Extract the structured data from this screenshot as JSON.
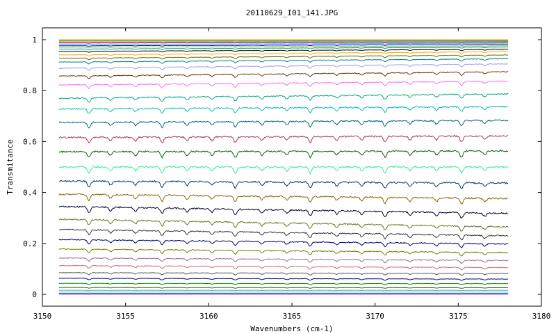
{
  "chart_data": {
    "type": "line",
    "title": "20110629_I01_141.JPG",
    "xlabel": "Wavenumbers (cm-1)",
    "ylabel": "Transmitance",
    "xlim": [
      3150,
      3180
    ],
    "ylim": [
      0,
      1.05
    ],
    "x_range_of_series": [
      3151,
      3178
    ],
    "x_ticks": [
      "3150",
      "3155",
      "3160",
      "3165",
      "3170",
      "3175",
      "3180"
    ],
    "y_ticks": [
      "0",
      "0.2",
      "0.4",
      "0.6",
      "0.8",
      "1"
    ],
    "grid": false,
    "legend": "none",
    "absorption_lines_cm1": [
      3152.8,
      3154.1,
      3155.6,
      3157.2,
      3158.7,
      3160.2,
      3161.6,
      3163.2,
      3164.7,
      3166.1,
      3167.7,
      3169.2,
      3170.6,
      3172.1,
      3173.7,
      3175.2,
      3176.6
    ],
    "series": [
      {
        "color": "#e8d21f",
        "values": [
          1.0,
          1.0
        ]
      },
      {
        "color": "#ff6600",
        "values": [
          0.998,
          0.998
        ]
      },
      {
        "color": "#33cc33",
        "values": [
          0.995,
          0.996
        ]
      },
      {
        "color": "#9966cc",
        "values": [
          0.991,
          0.993
        ]
      },
      {
        "color": "#ff0000",
        "values": [
          0.987,
          0.99
        ]
      },
      {
        "color": "#00ccff",
        "values": [
          0.982,
          0.986
        ]
      },
      {
        "color": "#0000ff",
        "values": [
          0.976,
          0.981
        ]
      },
      {
        "color": "#99cc00",
        "values": [
          0.97,
          0.976
        ]
      },
      {
        "color": "#009999",
        "values": [
          0.963,
          0.971
        ]
      },
      {
        "color": "#000000",
        "values": [
          0.954,
          0.962
        ]
      },
      {
        "color": "#ffaa00",
        "values": [
          0.94,
          0.953
        ]
      },
      {
        "color": "#666600",
        "values": [
          0.927,
          0.94
        ]
      },
      {
        "color": "#008080",
        "values": [
          0.912,
          0.925
        ]
      },
      {
        "color": "#9999ff",
        "values": [
          0.888,
          0.905
        ]
      },
      {
        "color": "#663300",
        "values": [
          0.857,
          0.874
        ]
      },
      {
        "color": "#ff66ff",
        "values": [
          0.822,
          0.837
        ]
      },
      {
        "color": "#00aa77",
        "values": [
          0.77,
          0.787
        ]
      },
      {
        "color": "#00bbbb",
        "values": [
          0.728,
          0.737
        ]
      },
      {
        "color": "#006680",
        "values": [
          0.675,
          0.683
        ]
      },
      {
        "color": "#aa3366",
        "values": [
          0.616,
          0.622
        ]
      },
      {
        "color": "#006600",
        "values": [
          0.56,
          0.563
        ]
      },
      {
        "color": "#33ee88",
        "values": [
          0.5,
          0.5
        ]
      },
      {
        "color": "#003366",
        "values": [
          0.445,
          0.437
        ]
      },
      {
        "color": "#886600",
        "values": [
          0.393,
          0.376
        ]
      },
      {
        "color": "#000033",
        "values": [
          0.345,
          0.318
        ]
      },
      {
        "color": "#667722",
        "values": [
          0.295,
          0.265
        ]
      },
      {
        "color": "#333333",
        "values": [
          0.255,
          0.23
        ]
      },
      {
        "color": "#000066",
        "values": [
          0.215,
          0.198
        ]
      },
      {
        "color": "#777700",
        "values": [
          0.178,
          0.164
        ]
      },
      {
        "color": "#996699",
        "values": [
          0.143,
          0.133
        ]
      },
      {
        "color": "#cc6677",
        "values": [
          0.113,
          0.105
        ]
      },
      {
        "color": "#555555",
        "values": [
          0.085,
          0.082
        ]
      },
      {
        "color": "#000099",
        "values": [
          0.063,
          0.06
        ]
      },
      {
        "color": "#008800",
        "values": [
          0.043,
          0.042
        ]
      },
      {
        "color": "#336600",
        "values": [
          0.027,
          0.026
        ]
      },
      {
        "color": "#66aa99",
        "values": [
          0.016,
          0.016
        ]
      },
      {
        "color": "#44cccc",
        "values": [
          0.009,
          0.009
        ]
      },
      {
        "color": "#0066cc",
        "values": [
          0.004,
          0.004
        ]
      },
      {
        "color": "#cc33cc",
        "values": [
          0.0,
          0.0
        ]
      }
    ]
  }
}
